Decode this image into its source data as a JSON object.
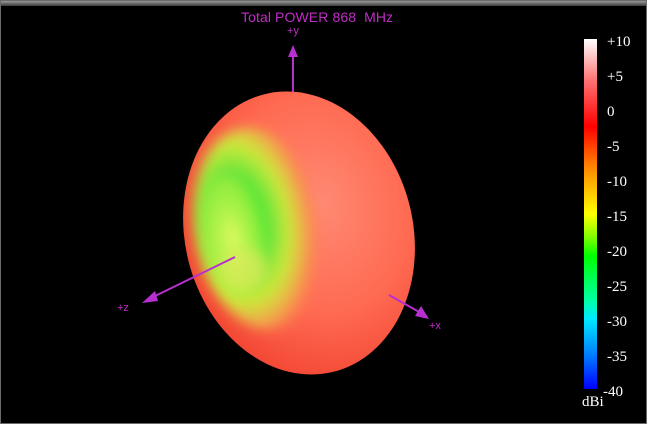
{
  "title": "Total POWER 868  MHz",
  "axes": {
    "y": "+y",
    "z": "+z",
    "x": "+x"
  },
  "colorbar": {
    "ticks": [
      "+10",
      "+5",
      "0",
      "-5",
      "-10",
      "-15",
      "-20",
      "-25",
      "-30",
      "-35",
      "-40"
    ],
    "unit": "dBi"
  },
  "colors": {
    "background": "#000000",
    "axis": "#c02dc6",
    "pattern_main": "#ff6a52",
    "pattern_low": "#3ddc2e"
  }
}
